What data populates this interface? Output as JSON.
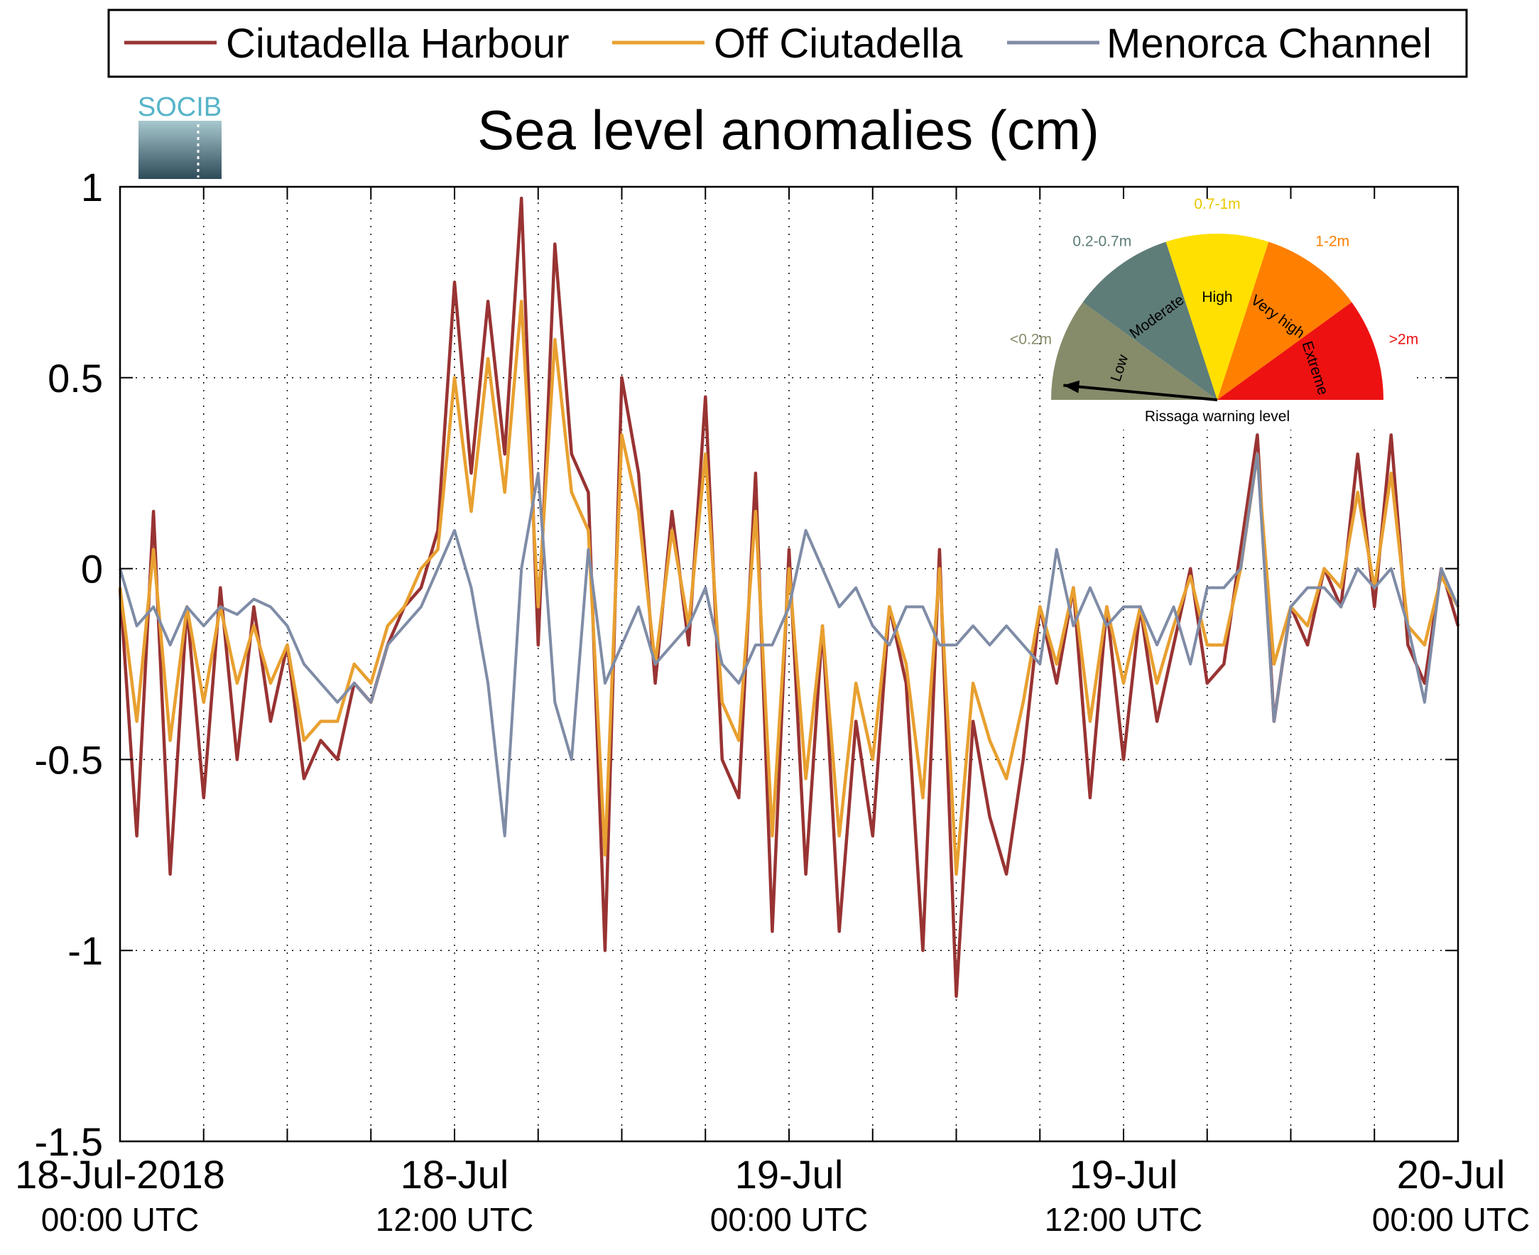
{
  "chart_data": {
    "type": "line",
    "title": "Sea level anomalies (cm)",
    "xlabel": "",
    "ylabel": "",
    "ylim": [
      -1.5,
      1
    ],
    "yticks": [
      "1",
      "0.5",
      "0",
      "-0.5",
      "-1",
      "-1.5"
    ],
    "xlim_hours": [
      0,
      48
    ],
    "xticks": [
      {
        "line1": "18-Jul-2018",
        "line2": "00:00 UTC"
      },
      {
        "line1": "18-Jul",
        "line2": "12:00 UTC"
      },
      {
        "line1": "19-Jul",
        "line2": "00:00 UTC"
      },
      {
        "line1": "19-Jul",
        "line2": "12:00 UTC"
      },
      {
        "line1": "20-Jul",
        "line2": "00:00 UTC"
      }
    ],
    "grid": true,
    "legend_position": "top",
    "series": [
      {
        "name": "Ciutadella Harbour",
        "color": "#993333",
        "x_hours": [
          0,
          0.6,
          1.2,
          1.8,
          2.4,
          3,
          3.6,
          4.2,
          4.8,
          5.4,
          6,
          6.6,
          7.2,
          7.8,
          8.4,
          9,
          9.6,
          10.2,
          10.8,
          11.4,
          12,
          12.6,
          13.2,
          13.8,
          14.4,
          15,
          15.6,
          16.2,
          16.8,
          17.4,
          18,
          18.6,
          19.2,
          19.8,
          20.4,
          21,
          21.6,
          22.2,
          22.8,
          23.4,
          24,
          24.6,
          25.2,
          25.8,
          26.4,
          27,
          27.6,
          28.2,
          28.8,
          29.4,
          30,
          30.6,
          31.2,
          31.8,
          32.4,
          33,
          33.6,
          34.2,
          34.8,
          35.4,
          36,
          36.6,
          37.2,
          37.8,
          38.4,
          39,
          39.6,
          40.2,
          40.8,
          41.4,
          42,
          42.6,
          43.2,
          43.8,
          44.4,
          45,
          45.6,
          46.2,
          46.8,
          47.4,
          48
        ],
        "values": [
          -0.05,
          -0.7,
          0.15,
          -0.8,
          -0.1,
          -0.6,
          -0.05,
          -0.5,
          -0.1,
          -0.4,
          -0.2,
          -0.55,
          -0.45,
          -0.5,
          -0.3,
          -0.35,
          -0.2,
          -0.1,
          -0.05,
          0.1,
          0.75,
          0.25,
          0.7,
          0.3,
          0.97,
          -0.2,
          0.85,
          0.3,
          0.2,
          -1.0,
          0.5,
          0.25,
          -0.3,
          0.15,
          -0.2,
          0.45,
          -0.5,
          -0.6,
          0.25,
          -0.95,
          0.05,
          -0.8,
          -0.15,
          -0.95,
          -0.4,
          -0.7,
          -0.1,
          -0.3,
          -1.0,
          0.05,
          -1.12,
          -0.4,
          -0.65,
          -0.8,
          -0.5,
          -0.1,
          -0.3,
          -0.05,
          -0.6,
          -0.1,
          -0.5,
          -0.1,
          -0.4,
          -0.2,
          0.0,
          -0.3,
          -0.25,
          0.05,
          0.35,
          -0.4,
          -0.1,
          -0.2,
          0.0,
          -0.1,
          0.3,
          -0.1,
          0.35,
          -0.2,
          -0.3,
          0.0,
          -0.15
        ]
      },
      {
        "name": "Off Ciutadella",
        "color": "#e8a030",
        "x_hours": [
          0,
          0.6,
          1.2,
          1.8,
          2.4,
          3,
          3.6,
          4.2,
          4.8,
          5.4,
          6,
          6.6,
          7.2,
          7.8,
          8.4,
          9,
          9.6,
          10.2,
          10.8,
          11.4,
          12,
          12.6,
          13.2,
          13.8,
          14.4,
          15,
          15.6,
          16.2,
          16.8,
          17.4,
          18,
          18.6,
          19.2,
          19.8,
          20.4,
          21,
          21.6,
          22.2,
          22.8,
          23.4,
          24,
          24.6,
          25.2,
          25.8,
          26.4,
          27,
          27.6,
          28.2,
          28.8,
          29.4,
          30,
          30.6,
          31.2,
          31.8,
          32.4,
          33,
          33.6,
          34.2,
          34.8,
          35.4,
          36,
          36.6,
          37.2,
          37.8,
          38.4,
          39,
          39.6,
          40.2,
          40.8,
          41.4,
          42,
          42.6,
          43.2,
          43.8,
          44.4,
          45,
          45.6,
          46.2,
          46.8,
          47.4,
          48
        ],
        "values": [
          -0.05,
          -0.4,
          0.05,
          -0.45,
          -0.1,
          -0.35,
          -0.1,
          -0.3,
          -0.15,
          -0.3,
          -0.2,
          -0.45,
          -0.4,
          -0.4,
          -0.25,
          -0.3,
          -0.15,
          -0.1,
          0.0,
          0.05,
          0.5,
          0.15,
          0.55,
          0.2,
          0.7,
          -0.1,
          0.6,
          0.2,
          0.1,
          -0.75,
          0.35,
          0.15,
          -0.25,
          0.1,
          -0.15,
          0.3,
          -0.35,
          -0.45,
          0.15,
          -0.7,
          0.0,
          -0.55,
          -0.15,
          -0.7,
          -0.3,
          -0.5,
          -0.1,
          -0.25,
          -0.6,
          0.0,
          -0.8,
          -0.3,
          -0.45,
          -0.55,
          -0.35,
          -0.1,
          -0.25,
          -0.05,
          -0.4,
          -0.1,
          -0.3,
          -0.1,
          -0.3,
          -0.15,
          -0.02,
          -0.2,
          -0.2,
          0.0,
          0.3,
          -0.25,
          -0.1,
          -0.15,
          0.0,
          -0.05,
          0.2,
          -0.05,
          0.25,
          -0.15,
          -0.2,
          -0.02,
          -0.1
        ]
      },
      {
        "name": "Menorca Channel",
        "color": "#7f8ca6",
        "x_hours": [
          0,
          0.6,
          1.2,
          1.8,
          2.4,
          3,
          3.6,
          4.2,
          4.8,
          5.4,
          6,
          6.6,
          7.2,
          7.8,
          8.4,
          9,
          9.6,
          10.2,
          10.8,
          11.4,
          12,
          12.6,
          13.2,
          13.8,
          14.4,
          15,
          15.6,
          16.2,
          16.8,
          17.4,
          18,
          18.6,
          19.2,
          19.8,
          20.4,
          21,
          21.6,
          22.2,
          22.8,
          23.4,
          24,
          24.6,
          25.2,
          25.8,
          26.4,
          27,
          27.6,
          28.2,
          28.8,
          29.4,
          30,
          30.6,
          31.2,
          31.8,
          32.4,
          33,
          33.6,
          34.2,
          34.8,
          35.4,
          36,
          36.6,
          37.2,
          37.8,
          38.4,
          39,
          39.6,
          40.2,
          40.8,
          41.4,
          42,
          42.6,
          43.2,
          43.8,
          44.4,
          45,
          45.6,
          46.2,
          46.8,
          47.4,
          48
        ],
        "values": [
          0.0,
          -0.15,
          -0.1,
          -0.2,
          -0.1,
          -0.15,
          -0.1,
          -0.12,
          -0.08,
          -0.1,
          -0.15,
          -0.25,
          -0.3,
          -0.35,
          -0.3,
          -0.35,
          -0.2,
          -0.15,
          -0.1,
          0.0,
          0.1,
          -0.05,
          -0.3,
          -0.7,
          0.0,
          0.25,
          -0.35,
          -0.5,
          0.05,
          -0.3,
          -0.2,
          -0.1,
          -0.25,
          -0.2,
          -0.15,
          -0.05,
          -0.25,
          -0.3,
          -0.2,
          -0.2,
          -0.1,
          0.1,
          0.0,
          -0.1,
          -0.05,
          -0.15,
          -0.2,
          -0.1,
          -0.1,
          -0.2,
          -0.2,
          -0.15,
          -0.2,
          -0.15,
          -0.2,
          -0.25,
          0.05,
          -0.15,
          -0.05,
          -0.15,
          -0.1,
          -0.1,
          -0.2,
          -0.1,
          -0.25,
          -0.05,
          -0.05,
          0.0,
          0.3,
          -0.4,
          -0.1,
          -0.05,
          -0.05,
          -0.1,
          0.0,
          -0.05,
          0.0,
          -0.15,
          -0.35,
          0.0,
          -0.1
        ]
      }
    ]
  },
  "logo": {
    "text": "SOCIB"
  },
  "gauge": {
    "caption": "Rissaga warning level",
    "segments": [
      {
        "name": "Low",
        "range": "<0.2m",
        "color": "#868c6a",
        "label_color": "#868c6a"
      },
      {
        "name": "Moderate",
        "range": "0.2-0.7m",
        "color": "#5e7c78",
        "label_color": "#5e7c78"
      },
      {
        "name": "High",
        "range": "0.7-1m",
        "color": "#ffe000",
        "label_color": "#e8c800"
      },
      {
        "name": "Very high",
        "range": "1-2m",
        "color": "#ff7f00",
        "label_color": "#ff7f00"
      },
      {
        "name": "Extreme",
        "range": ">2m",
        "color": "#ee1111",
        "label_color": "#ee1111"
      }
    ],
    "needle_level_fraction": 0.03
  }
}
